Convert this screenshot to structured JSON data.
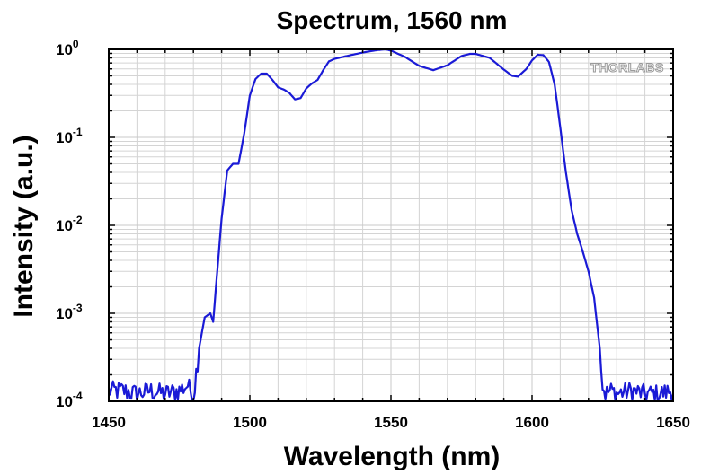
{
  "chart_data": {
    "type": "line",
    "title": "Spectrum, 1560 nm",
    "xlabel": "Wavelength (nm)",
    "ylabel": "Intensity (a.u.)",
    "xlim": [
      1450,
      1650
    ],
    "ylim": [
      0.0001,
      1
    ],
    "yscale": "log",
    "grid": true,
    "x_ticks": [
      "1450",
      "1500",
      "1550",
      "1600",
      "1650"
    ],
    "y_ticks": [
      {
        "base": "10",
        "exp": "-4"
      },
      {
        "base": "10",
        "exp": "-3"
      },
      {
        "base": "10",
        "exp": "-2"
      },
      {
        "base": "10",
        "exp": "-1"
      },
      {
        "base": "10",
        "exp": "0"
      }
    ],
    "watermark": "THORLABS",
    "series": [
      {
        "color": "#1a1ad6",
        "x": [
          1450,
          1455,
          1460,
          1465,
          1470,
          1475,
          1478,
          1480,
          1482,
          1484,
          1486,
          1487,
          1488,
          1490,
          1492,
          1494,
          1496,
          1498,
          1500,
          1502,
          1504,
          1506,
          1508,
          1510,
          1512,
          1514,
          1516,
          1518,
          1520,
          1522,
          1524,
          1526,
          1528,
          1530,
          1535,
          1540,
          1545,
          1548,
          1550,
          1555,
          1560,
          1565,
          1570,
          1575,
          1578,
          1580,
          1585,
          1590,
          1593,
          1595,
          1598,
          1600,
          1602,
          1604,
          1606,
          1608,
          1610,
          1612,
          1614,
          1616,
          1618,
          1620,
          1622,
          1624,
          1625,
          1626,
          1628,
          1630,
          1635,
          1640,
          1645,
          1650
        ],
        "y": [
          0.00013,
          0.00013,
          0.00012,
          0.00013,
          0.00012,
          0.00013,
          0.00015,
          0.00011,
          0.0004,
          0.0009,
          0.001,
          0.0008,
          0.002,
          0.012,
          0.042,
          0.05,
          0.05,
          0.11,
          0.3,
          0.46,
          0.53,
          0.53,
          0.45,
          0.37,
          0.35,
          0.32,
          0.27,
          0.28,
          0.36,
          0.41,
          0.45,
          0.58,
          0.73,
          0.78,
          0.85,
          0.92,
          0.98,
          1.0,
          0.97,
          0.82,
          0.65,
          0.58,
          0.66,
          0.84,
          0.89,
          0.89,
          0.8,
          0.59,
          0.5,
          0.49,
          0.6,
          0.75,
          0.87,
          0.86,
          0.72,
          0.4,
          0.13,
          0.04,
          0.015,
          0.008,
          0.005,
          0.003,
          0.0015,
          0.0004,
          0.00015,
          0.00012,
          0.00013,
          0.00012,
          0.00013,
          0.00012,
          0.00012,
          0.00013
        ]
      }
    ]
  }
}
